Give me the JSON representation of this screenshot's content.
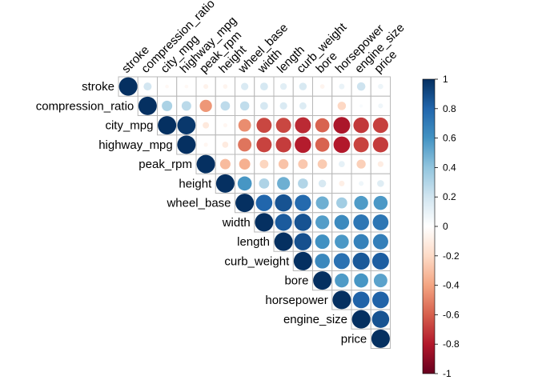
{
  "chart_data": {
    "type": "heatmap",
    "title": "",
    "variables": [
      "stroke",
      "compression_ratio",
      "city_mpg",
      "highway_mpg",
      "peak_rpm",
      "height",
      "wheel_base",
      "width",
      "length",
      "curb_weight",
      "bore",
      "horsepower",
      "engine_size",
      "price"
    ],
    "matrix": [
      [
        1.0,
        0.19,
        -0.04,
        -0.04,
        -0.07,
        -0.06,
        0.16,
        0.18,
        0.13,
        0.17,
        -0.06,
        0.09,
        0.21,
        0.08
      ],
      [
        0.19,
        1.0,
        0.32,
        0.27,
        -0.44,
        0.26,
        0.25,
        0.18,
        0.16,
        0.15,
        0.0,
        -0.21,
        0.03,
        0.07
      ],
      [
        -0.04,
        0.32,
        1.0,
        0.97,
        -0.12,
        -0.05,
        -0.47,
        -0.67,
        -0.67,
        -0.75,
        -0.59,
        -0.82,
        -0.71,
        -0.69
      ],
      [
        -0.04,
        0.27,
        0.97,
        1.0,
        -0.05,
        -0.11,
        -0.54,
        -0.68,
        -0.7,
        -0.79,
        -0.59,
        -0.8,
        -0.68,
        -0.7
      ],
      [
        -0.07,
        -0.44,
        -0.12,
        -0.05,
        1.0,
        -0.32,
        -0.36,
        -0.22,
        -0.29,
        -0.27,
        -0.26,
        0.11,
        -0.24,
        -0.1
      ],
      [
        -0.06,
        0.26,
        -0.05,
        -0.11,
        -0.32,
        1.0,
        0.59,
        0.31,
        0.49,
        0.3,
        0.17,
        -0.09,
        0.07,
        0.14
      ],
      [
        0.16,
        0.25,
        -0.47,
        -0.54,
        -0.36,
        0.59,
        1.0,
        0.8,
        0.87,
        0.78,
        0.49,
        0.35,
        0.57,
        0.58
      ],
      [
        0.18,
        0.18,
        -0.67,
        -0.68,
        -0.22,
        0.31,
        0.8,
        1.0,
        0.84,
        0.87,
        0.56,
        0.64,
        0.73,
        0.73
      ],
      [
        0.13,
        0.16,
        -0.67,
        -0.7,
        -0.29,
        0.49,
        0.87,
        0.84,
        1.0,
        0.88,
        0.61,
        0.58,
        0.68,
        0.69
      ],
      [
        0.17,
        0.15,
        -0.75,
        -0.79,
        -0.27,
        0.3,
        0.78,
        0.87,
        0.88,
        1.0,
        0.65,
        0.75,
        0.85,
        0.83
      ],
      [
        -0.06,
        0.0,
        -0.59,
        -0.59,
        -0.26,
        0.17,
        0.49,
        0.56,
        0.61,
        0.65,
        1.0,
        0.57,
        0.59,
        0.54
      ],
      [
        0.09,
        -0.21,
        -0.82,
        -0.8,
        0.11,
        -0.09,
        0.35,
        0.64,
        0.58,
        0.75,
        0.57,
        1.0,
        0.81,
        0.81
      ],
      [
        0.21,
        0.03,
        -0.71,
        -0.68,
        -0.24,
        0.07,
        0.57,
        0.73,
        0.68,
        0.85,
        0.59,
        0.81,
        1.0,
        0.87
      ],
      [
        0.08,
        0.07,
        -0.69,
        -0.7,
        -0.1,
        0.14,
        0.58,
        0.73,
        0.69,
        0.83,
        0.54,
        0.81,
        0.87,
        1.0
      ]
    ],
    "display": "upper triangle, circle size and color by correlation",
    "color_scale": {
      "range": [
        -1,
        1
      ],
      "low_color": "#67001F",
      "mid_color": "#FFFFFF",
      "high_color": "#053061",
      "ticks": [
        "1",
        "0.8",
        "0.6",
        "0.4",
        "0.2",
        "0",
        "-0.2",
        "-0.4",
        "-0.6",
        "-0.8",
        "-1"
      ]
    },
    "grid": true,
    "legend": "right"
  }
}
